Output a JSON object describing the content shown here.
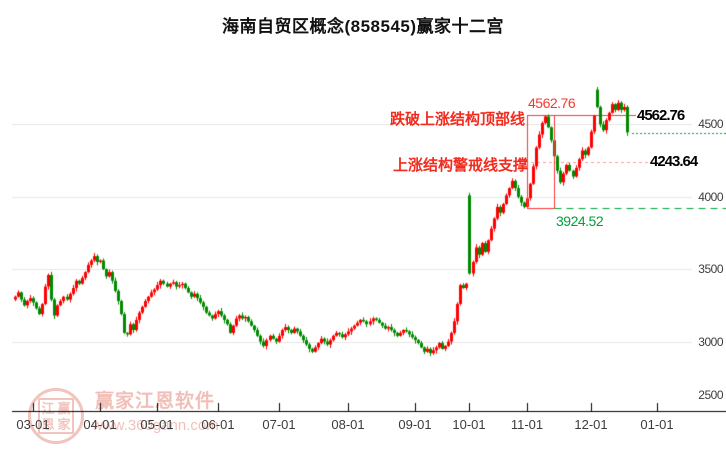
{
  "title": "海南自贸区概念(858545)赢家十二宫",
  "colors": {
    "candle_up": "#fe0000",
    "candle_down": "#008a00",
    "grid": "#e6e6e6",
    "axis": "#000000",
    "tick_label": "#3c3c3c",
    "annotation_red": "#f22b1e",
    "annotation_pink": "#ff9d9d",
    "annotation_green": "#00a03c",
    "watermark_pink": "#e98b7f"
  },
  "y_axis": {
    "ticks": [
      "4500",
      "4000",
      "3500",
      "3000",
      "2500"
    ]
  },
  "x_axis": {
    "labels": [
      "03-01",
      "04-01",
      "05-01",
      "06-01",
      "07-01",
      "08-01",
      "09-01",
      "10-01",
      "11-01",
      "12-01",
      "01-01"
    ]
  },
  "annotations": {
    "top_line": {
      "text": "跌破上涨结构顶部线",
      "value": "4562.76",
      "price": 4562.76
    },
    "support_line": {
      "text": "上涨结构警戒线支撑",
      "value": "4243.64",
      "price": 4243.64
    },
    "pivot_low": {
      "value": "3924.52",
      "price": 3924.52
    }
  },
  "watermark": {
    "brand": "赢家江恩软件",
    "url": "www.360gann.com",
    "seal": [
      "江",
      "赢",
      "恩",
      "家"
    ]
  },
  "chart_data": {
    "type": "candlestick",
    "title": "海南自贸区概念(858545)赢家十二宫",
    "ylim": [
      2500,
      4950
    ],
    "grid": true,
    "y_ticks": [
      4500,
      4000,
      3500,
      3000,
      2500
    ],
    "x_tick_labels": [
      "03-01",
      "04-01",
      "05-01",
      "06-01",
      "07-01",
      "08-01",
      "09-01",
      "10-01",
      "11-01",
      "12-01",
      "01-01"
    ],
    "month_tick_indices": [
      6,
      28,
      47,
      67,
      87,
      110,
      132,
      150,
      169,
      190,
      212
    ],
    "first_open": 3290,
    "closes": [
      3310,
      3340,
      3290,
      3250,
      3280,
      3300,
      3270,
      3230,
      3190,
      3260,
      3380,
      3460,
      3290,
      3180,
      3250,
      3280,
      3310,
      3290,
      3330,
      3370,
      3420,
      3400,
      3440,
      3480,
      3530,
      3560,
      3590,
      3550,
      3560,
      3500,
      3450,
      3480,
      3420,
      3350,
      3280,
      3190,
      3060,
      3050,
      3120,
      3080,
      3150,
      3200,
      3240,
      3280,
      3310,
      3340,
      3360,
      3390,
      3420,
      3400,
      3380,
      3400,
      3410,
      3380,
      3390,
      3400,
      3370,
      3340,
      3310,
      3330,
      3300,
      3270,
      3240,
      3200,
      3180,
      3160,
      3190,
      3210,
      3180,
      3150,
      3120,
      3060,
      3110,
      3160,
      3180,
      3160,
      3170,
      3140,
      3110,
      3080,
      3040,
      3000,
      2970,
      3010,
      3040,
      3020,
      3000,
      3040,
      3080,
      3100,
      3080,
      3060,
      3090,
      3070,
      3040,
      3010,
      2980,
      2950,
      2930,
      2960,
      2990,
      3020,
      3000,
      2980,
      3010,
      3040,
      3060,
      3050,
      3030,
      3050,
      3070,
      3090,
      3110,
      3130,
      3150,
      3140,
      3120,
      3140,
      3160,
      3150,
      3130,
      3110,
      3090,
      3100,
      3080,
      3060,
      3040,
      3060,
      3080,
      3070,
      3050,
      3030,
      3010,
      2990,
      2960,
      2930,
      2950,
      2920,
      2940,
      2960,
      2990,
      2950,
      2970,
      3000,
      3060,
      3140,
      3260,
      3390,
      3370,
      3400,
      3470,
      3550,
      3650,
      3600,
      3680,
      3620,
      3700,
      3780,
      3850,
      3930,
      3890,
      3950,
      4010,
      4060,
      4110,
      4060,
      4000,
      3960,
      3930,
      3990,
      4090,
      4210,
      4340,
      4430,
      4510,
      4555,
      4480,
      4390,
      4280,
      4180,
      4100,
      4160,
      4220,
      4180,
      4140,
      4200,
      4260,
      4320,
      4290,
      4340,
      4450,
      4560,
      4620,
      4500,
      4460,
      4530,
      4580,
      4640,
      4600,
      4650,
      4600,
      4620,
      4445
    ],
    "open_overrides": {
      "150": 4010,
      "192": 4740
    },
    "levels": {
      "structure_top": 4562.76,
      "warning_support": 4243.64,
      "pivot_low": 3924.52,
      "last_price": 4440
    },
    "structure_box": {
      "start_index": 169,
      "end_index": 178,
      "top": 4562.76,
      "bottom": 3924.52
    }
  }
}
